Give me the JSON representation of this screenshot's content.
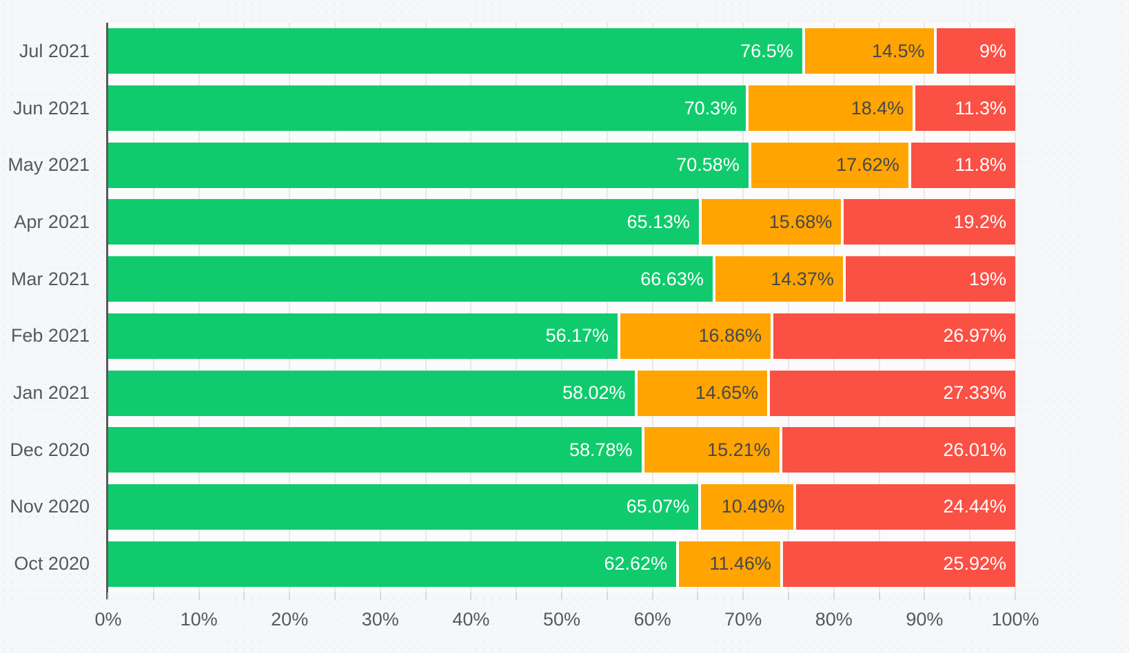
{
  "chart_data": {
    "type": "bar",
    "orientation": "horizontal",
    "stacked": true,
    "title": "",
    "xlabel": "",
    "ylabel": "",
    "legend": false,
    "grid": true,
    "categories": [
      "Jul 2021",
      "Jun 2021",
      "May 2021",
      "Apr 2021",
      "Mar 2021",
      "Feb 2021",
      "Jan 2021",
      "Dec 2020",
      "Nov 2020",
      "Oct 2020"
    ],
    "series": [
      {
        "name": "green",
        "color": "#10cb6d",
        "label_color": "#ffffff",
        "values": [
          76.5,
          70.3,
          70.58,
          65.13,
          66.63,
          56.17,
          58.02,
          58.78,
          65.07,
          62.62
        ],
        "labels": [
          "76.5%",
          "70.3%",
          "70.58%",
          "65.13%",
          "66.63%",
          "56.17%",
          "58.02%",
          "58.78%",
          "65.07%",
          "62.62%"
        ]
      },
      {
        "name": "orange",
        "color": "#ffa400",
        "label_color": "#47484a",
        "values": [
          14.5,
          18.4,
          17.62,
          15.68,
          14.37,
          16.86,
          14.65,
          15.21,
          10.49,
          11.46
        ],
        "labels": [
          "14.5%",
          "18.4%",
          "17.62%",
          "15.68%",
          "14.37%",
          "16.86%",
          "14.65%",
          "15.21%",
          "10.49%",
          "11.46%"
        ]
      },
      {
        "name": "red",
        "color": "#fb5044",
        "label_color": "#ffffff",
        "values": [
          9,
          11.3,
          11.8,
          19.2,
          19,
          26.97,
          27.33,
          26.01,
          24.44,
          25.92
        ],
        "labels": [
          "9%",
          "11.3%",
          "11.8%",
          "19.2%",
          "19%",
          "26.97%",
          "27.33%",
          "26.01%",
          "24.44%",
          "25.92%"
        ]
      }
    ],
    "x_axis": {
      "min": 0,
      "max": 100,
      "major_step": 10,
      "minor_step": 5,
      "tick_labels": [
        "0%",
        "10%",
        "20%",
        "30%",
        "40%",
        "50%",
        "60%",
        "70%",
        "80%",
        "90%",
        "100%"
      ]
    }
  }
}
